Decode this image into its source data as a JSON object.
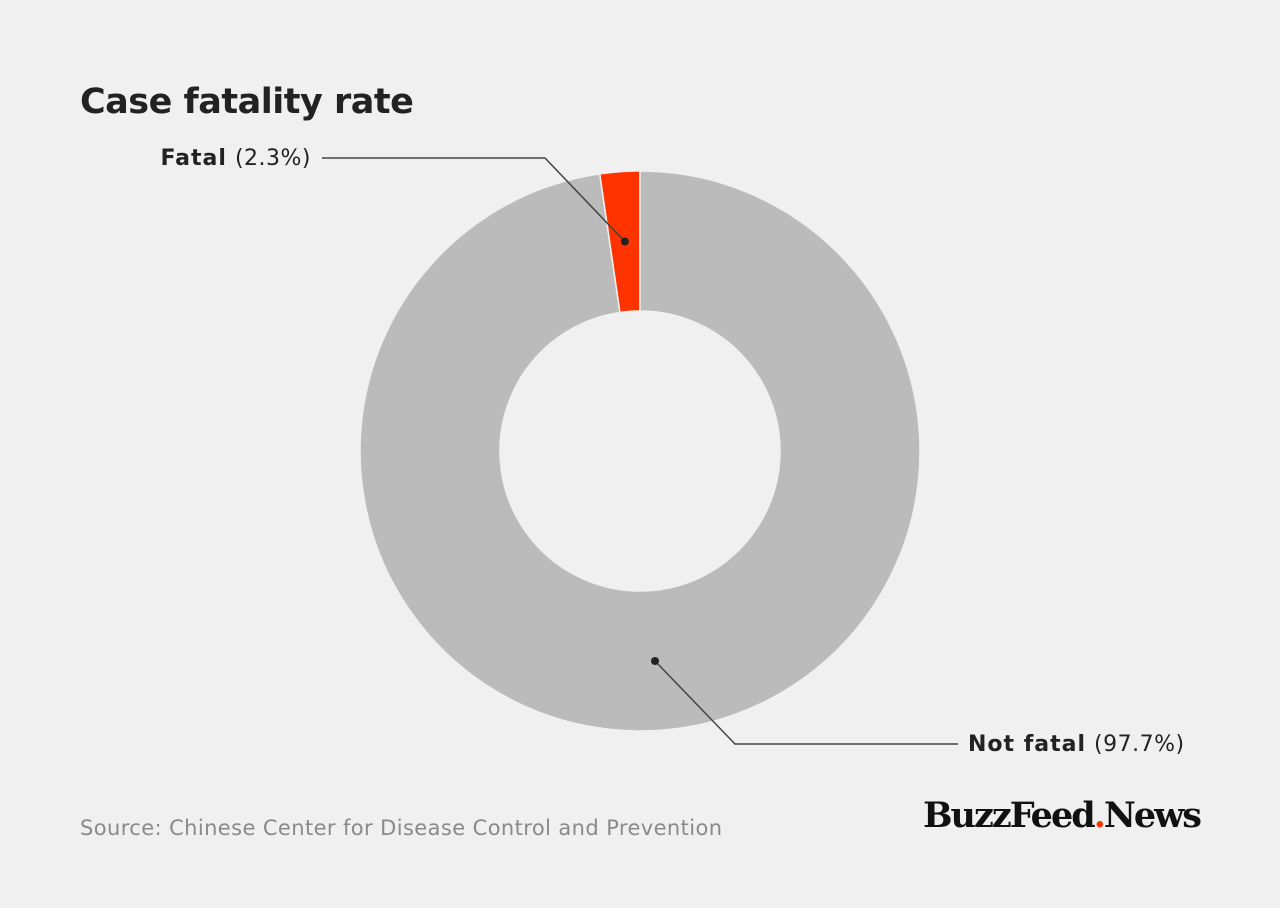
{
  "title": "Case fatality rate",
  "source": "Source: Chinese Center for Disease Control and Prevention",
  "brand": {
    "part1": "BuzzFeed",
    "dot": ".",
    "part2": "News"
  },
  "colors": {
    "background": "#f0f0f0",
    "fatal": "#ff3300",
    "not_fatal": "#bbbbbb",
    "text": "#222222",
    "source_text": "#8a8a8a",
    "leader_line": "#444444"
  },
  "chart_data": {
    "type": "pie",
    "variant": "donut",
    "title": "Case fatality rate",
    "slices": [
      {
        "label": "Fatal",
        "value": 2.3,
        "value_label": "(2.3%)",
        "color": "#ff3300"
      },
      {
        "label": "Not fatal",
        "value": 97.7,
        "value_label": "(97.7%)",
        "color": "#bbbbbb"
      }
    ]
  }
}
